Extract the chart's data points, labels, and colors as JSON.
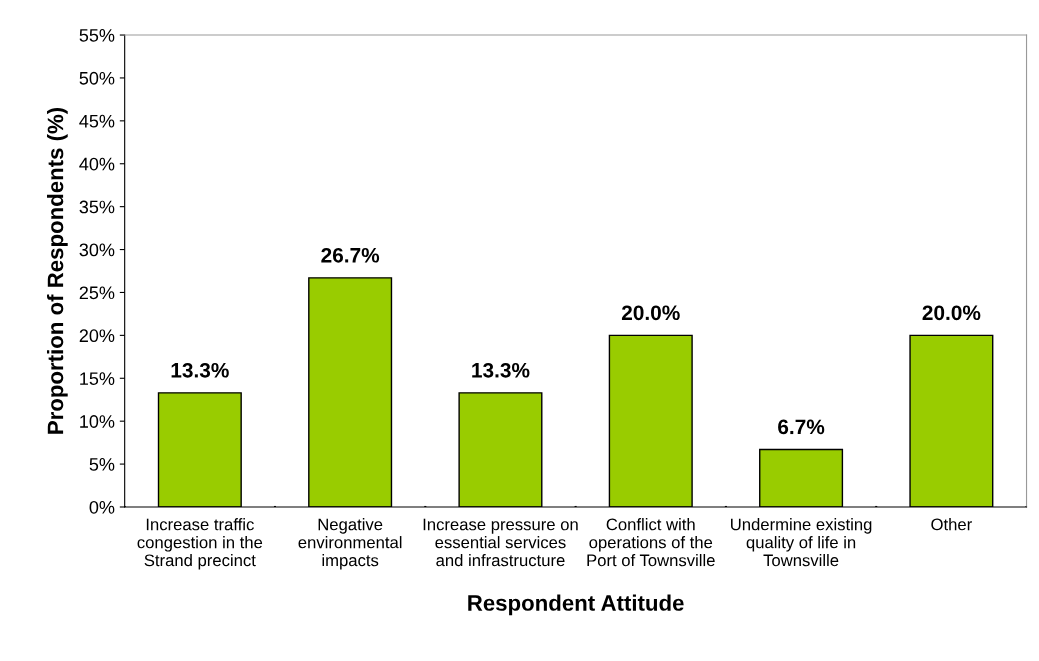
{
  "chart_data": {
    "type": "bar",
    "xlabel": "Respondent Attitude",
    "ylabel": "Proportion of Respondents (%)",
    "categories": [
      "Increase traffic congestion in the Strand precinct",
      "Negative environmental impacts",
      "Increase pressure on essential services and infrastructure",
      "Conflict with operations of the Port of Townsville",
      "Undermine existing quality of life in Townsville",
      "Other"
    ],
    "values": [
      13.3,
      26.7,
      13.3,
      20.0,
      6.7,
      20.0
    ],
    "value_labels": [
      "13.3%",
      "26.7%",
      "13.3%",
      "20.0%",
      "6.7%",
      "20.0%"
    ],
    "color": "#99cc00",
    "ylim": [
      0,
      55
    ],
    "yticks": [
      {
        "value": 0,
        "label": "0%"
      },
      {
        "value": 5,
        "label": "5%"
      },
      {
        "value": 10,
        "label": "10%"
      },
      {
        "value": 15,
        "label": "15%"
      },
      {
        "value": 20,
        "label": "20%"
      },
      {
        "value": 25,
        "label": "25%"
      },
      {
        "value": 30,
        "label": "30%"
      },
      {
        "value": 35,
        "label": "35%"
      },
      {
        "value": 40,
        "label": "40%"
      },
      {
        "value": 45,
        "label": "45%"
      },
      {
        "value": 50,
        "label": "50%"
      },
      {
        "value": 55,
        "label": "55%"
      }
    ],
    "grid": false,
    "legend": false
  }
}
